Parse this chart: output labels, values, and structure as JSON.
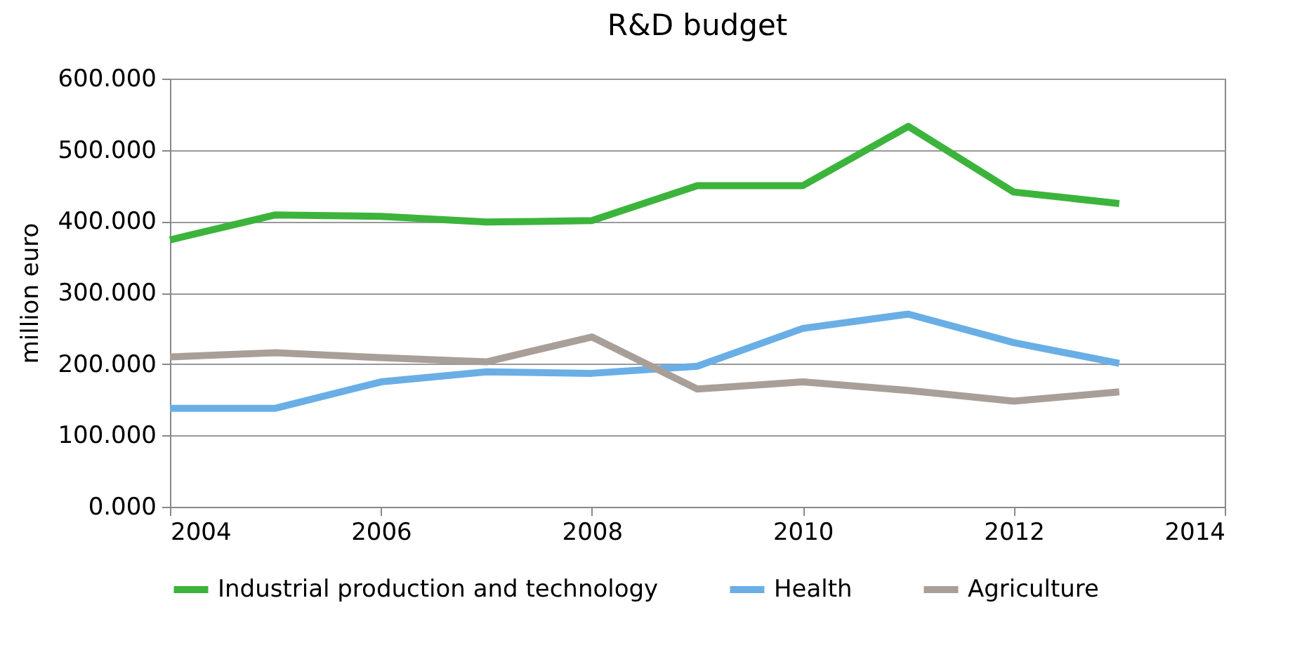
{
  "chart_data": {
    "type": "line",
    "title": "R&D budget",
    "ylabel": "million euro",
    "x": [
      2004,
      2005,
      2006,
      2007,
      2008,
      2009,
      2010,
      2011,
      2012,
      2013
    ],
    "series": [
      {
        "name": "Industrial production and technology",
        "color": "#3cb43c",
        "values": [
          374,
          409,
          407,
          399,
          401,
          450,
          450,
          533,
          441,
          425
        ]
      },
      {
        "name": "Health",
        "color": "#6aaee6",
        "values": [
          138,
          138,
          175,
          189,
          187,
          197,
          250,
          270,
          230,
          201
        ]
      },
      {
        "name": "Agriculture",
        "color": "#a89f98",
        "values": [
          210,
          216,
          209,
          203,
          238,
          165,
          175,
          163,
          148,
          161
        ]
      }
    ],
    "xlim": [
      2004,
      2014
    ],
    "xticks": [
      2004,
      2006,
      2008,
      2010,
      2012,
      2014
    ],
    "ylim": [
      0,
      600
    ],
    "yticks": [
      {
        "value": 0,
        "label": "0.000"
      },
      {
        "value": 100,
        "label": "100.000"
      },
      {
        "value": 200,
        "label": "200.000"
      },
      {
        "value": 300,
        "label": "300.000"
      },
      {
        "value": 400,
        "label": "400.000"
      },
      {
        "value": 500,
        "label": "500.000"
      },
      {
        "value": 600,
        "label": "600.000"
      }
    ],
    "grid": "y",
    "legend": "bottom",
    "marker": "none",
    "line_style": "solid"
  }
}
